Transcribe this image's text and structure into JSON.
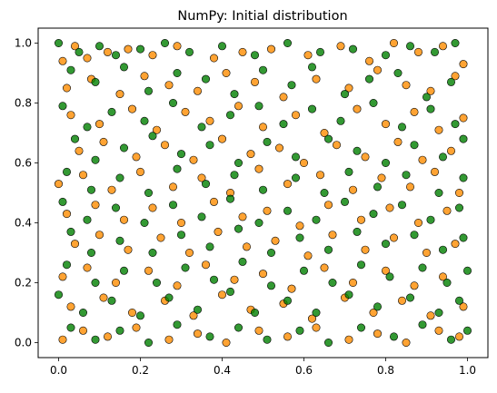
{
  "chart_data": {
    "type": "scatter",
    "title": "NumPy: Initial distribution",
    "xlabel": "",
    "ylabel": "",
    "xlim": [
      -0.05,
      1.05
    ],
    "ylim": [
      -0.05,
      1.05
    ],
    "xticks": [
      0.0,
      0.2,
      0.4,
      0.6,
      0.8,
      1.0
    ],
    "yticks": [
      0.0,
      0.2,
      0.4,
      0.6,
      0.8,
      1.0
    ],
    "xtick_labels": [
      "0.0",
      "0.2",
      "0.4",
      "0.6",
      "0.8",
      "1.0"
    ],
    "ytick_labels": [
      "0.0",
      "0.2",
      "0.4",
      "0.6",
      "0.8",
      "1.0"
    ],
    "grid": false,
    "legend": "none",
    "series": [
      {
        "color": "#ff8c00",
        "edgecolor": "#000000",
        "alpha": 0.8,
        "points": [
          [
            0.01,
            0.94
          ],
          [
            0.04,
            0.99
          ],
          [
            0.07,
            0.95
          ],
          [
            0.12,
            0.97
          ],
          [
            0.17,
            0.98
          ],
          [
            0.23,
            0.96
          ],
          [
            0.29,
            0.99
          ],
          [
            0.38,
            0.95
          ],
          [
            0.45,
            0.97
          ],
          [
            0.52,
            0.98
          ],
          [
            0.61,
            0.96
          ],
          [
            0.69,
            0.99
          ],
          [
            0.76,
            0.94
          ],
          [
            0.82,
            1.0
          ],
          [
            0.88,
            0.97
          ],
          [
            0.94,
            0.99
          ],
          [
            0.99,
            0.93
          ],
          [
            0.02,
            0.85
          ],
          [
            0.08,
            0.88
          ],
          [
            0.15,
            0.83
          ],
          [
            0.21,
            0.89
          ],
          [
            0.27,
            0.86
          ],
          [
            0.34,
            0.84
          ],
          [
            0.41,
            0.9
          ],
          [
            0.48,
            0.87
          ],
          [
            0.55,
            0.82
          ],
          [
            0.63,
            0.88
          ],
          [
            0.71,
            0.85
          ],
          [
            0.78,
            0.91
          ],
          [
            0.85,
            0.86
          ],
          [
            0.91,
            0.84
          ],
          [
            0.97,
            0.89
          ],
          [
            0.03,
            0.76
          ],
          [
            0.1,
            0.73
          ],
          [
            0.18,
            0.78
          ],
          [
            0.24,
            0.71
          ],
          [
            0.31,
            0.77
          ],
          [
            0.37,
            0.74
          ],
          [
            0.44,
            0.79
          ],
          [
            0.5,
            0.72
          ],
          [
            0.58,
            0.76
          ],
          [
            0.65,
            0.7
          ],
          [
            0.73,
            0.78
          ],
          [
            0.8,
            0.73
          ],
          [
            0.87,
            0.77
          ],
          [
            0.93,
            0.71
          ],
          [
            0.99,
            0.75
          ],
          [
            0.05,
            0.64
          ],
          [
            0.11,
            0.67
          ],
          [
            0.19,
            0.62
          ],
          [
            0.26,
            0.66
          ],
          [
            0.33,
            0.61
          ],
          [
            0.4,
            0.68
          ],
          [
            0.47,
            0.63
          ],
          [
            0.54,
            0.65
          ],
          [
            0.6,
            0.6
          ],
          [
            0.68,
            0.66
          ],
          [
            0.75,
            0.62
          ],
          [
            0.83,
            0.67
          ],
          [
            0.89,
            0.61
          ],
          [
            0.96,
            0.64
          ],
          [
            0.0,
            0.53
          ],
          [
            0.06,
            0.56
          ],
          [
            0.13,
            0.51
          ],
          [
            0.2,
            0.57
          ],
          [
            0.28,
            0.52
          ],
          [
            0.35,
            0.55
          ],
          [
            0.42,
            0.5
          ],
          [
            0.49,
            0.58
          ],
          [
            0.56,
            0.53
          ],
          [
            0.64,
            0.56
          ],
          [
            0.72,
            0.51
          ],
          [
            0.79,
            0.55
          ],
          [
            0.86,
            0.52
          ],
          [
            0.92,
            0.57
          ],
          [
            0.98,
            0.5
          ],
          [
            0.02,
            0.43
          ],
          [
            0.09,
            0.46
          ],
          [
            0.16,
            0.41
          ],
          [
            0.23,
            0.45
          ],
          [
            0.3,
            0.4
          ],
          [
            0.38,
            0.47
          ],
          [
            0.45,
            0.42
          ],
          [
            0.51,
            0.44
          ],
          [
            0.59,
            0.39
          ],
          [
            0.66,
            0.46
          ],
          [
            0.74,
            0.41
          ],
          [
            0.81,
            0.45
          ],
          [
            0.88,
            0.4
          ],
          [
            0.95,
            0.44
          ],
          [
            0.04,
            0.33
          ],
          [
            0.1,
            0.36
          ],
          [
            0.17,
            0.31
          ],
          [
            0.25,
            0.35
          ],
          [
            0.32,
            0.3
          ],
          [
            0.39,
            0.37
          ],
          [
            0.46,
            0.32
          ],
          [
            0.53,
            0.34
          ],
          [
            0.61,
            0.29
          ],
          [
            0.67,
            0.36
          ],
          [
            0.75,
            0.31
          ],
          [
            0.82,
            0.35
          ],
          [
            0.9,
            0.3
          ],
          [
            0.97,
            0.33
          ],
          [
            0.01,
            0.22
          ],
          [
            0.07,
            0.25
          ],
          [
            0.14,
            0.2
          ],
          [
            0.22,
            0.24
          ],
          [
            0.29,
            0.19
          ],
          [
            0.36,
            0.26
          ],
          [
            0.43,
            0.21
          ],
          [
            0.5,
            0.23
          ],
          [
            0.57,
            0.18
          ],
          [
            0.65,
            0.25
          ],
          [
            0.72,
            0.2
          ],
          [
            0.8,
            0.24
          ],
          [
            0.87,
            0.19
          ],
          [
            0.94,
            0.22
          ],
          [
            0.03,
            0.12
          ],
          [
            0.11,
            0.15
          ],
          [
            0.18,
            0.1
          ],
          [
            0.26,
            0.14
          ],
          [
            0.33,
            0.09
          ],
          [
            0.4,
            0.16
          ],
          [
            0.47,
            0.11
          ],
          [
            0.55,
            0.13
          ],
          [
            0.62,
            0.08
          ],
          [
            0.7,
            0.15
          ],
          [
            0.77,
            0.1
          ],
          [
            0.84,
            0.14
          ],
          [
            0.91,
            0.09
          ],
          [
            0.99,
            0.12
          ],
          [
            0.01,
            0.01
          ],
          [
            0.06,
            0.04
          ],
          [
            0.12,
            0.02
          ],
          [
            0.19,
            0.05
          ],
          [
            0.27,
            0.01
          ],
          [
            0.34,
            0.03
          ],
          [
            0.41,
            0.0
          ],
          [
            0.49,
            0.04
          ],
          [
            0.56,
            0.02
          ],
          [
            0.63,
            0.05
          ],
          [
            0.71,
            0.01
          ],
          [
            0.78,
            0.03
          ],
          [
            0.85,
            0.0
          ],
          [
            0.93,
            0.04
          ],
          [
            0.98,
            0.02
          ]
        ]
      },
      {
        "color": "#008000",
        "edgecolor": "#000000",
        "alpha": 0.8,
        "points": [
          [
            0.0,
            1.0
          ],
          [
            0.05,
            0.97
          ],
          [
            0.1,
            0.99
          ],
          [
            0.14,
            0.96
          ],
          [
            0.2,
            0.98
          ],
          [
            0.26,
            1.0
          ],
          [
            0.32,
            0.97
          ],
          [
            0.4,
            0.99
          ],
          [
            0.48,
            0.96
          ],
          [
            0.56,
            1.0
          ],
          [
            0.64,
            0.97
          ],
          [
            0.72,
            0.98
          ],
          [
            0.8,
            0.96
          ],
          [
            0.86,
            0.99
          ],
          [
            0.92,
            0.97
          ],
          [
            0.97,
            1.0
          ],
          [
            0.03,
            0.91
          ],
          [
            0.09,
            0.87
          ],
          [
            0.16,
            0.92
          ],
          [
            0.22,
            0.84
          ],
          [
            0.29,
            0.9
          ],
          [
            0.36,
            0.88
          ],
          [
            0.43,
            0.83
          ],
          [
            0.5,
            0.91
          ],
          [
            0.57,
            0.86
          ],
          [
            0.62,
            0.92
          ],
          [
            0.7,
            0.83
          ],
          [
            0.76,
            0.88
          ],
          [
            0.83,
            0.9
          ],
          [
            0.9,
            0.82
          ],
          [
            0.96,
            0.87
          ],
          [
            0.01,
            0.79
          ],
          [
            0.07,
            0.72
          ],
          [
            0.13,
            0.77
          ],
          [
            0.21,
            0.74
          ],
          [
            0.28,
            0.8
          ],
          [
            0.35,
            0.72
          ],
          [
            0.42,
            0.76
          ],
          [
            0.49,
            0.79
          ],
          [
            0.55,
            0.73
          ],
          [
            0.62,
            0.78
          ],
          [
            0.69,
            0.74
          ],
          [
            0.77,
            0.8
          ],
          [
            0.84,
            0.72
          ],
          [
            0.91,
            0.78
          ],
          [
            0.97,
            0.73
          ],
          [
            0.04,
            0.68
          ],
          [
            0.09,
            0.61
          ],
          [
            0.16,
            0.65
          ],
          [
            0.23,
            0.69
          ],
          [
            0.3,
            0.63
          ],
          [
            0.37,
            0.66
          ],
          [
            0.44,
            0.6
          ],
          [
            0.51,
            0.67
          ],
          [
            0.58,
            0.62
          ],
          [
            0.66,
            0.68
          ],
          [
            0.73,
            0.64
          ],
          [
            0.8,
            0.6
          ],
          [
            0.87,
            0.66
          ],
          [
            0.94,
            0.62
          ],
          [
            0.99,
            0.68
          ],
          [
            0.02,
            0.57
          ],
          [
            0.08,
            0.51
          ],
          [
            0.15,
            0.55
          ],
          [
            0.22,
            0.5
          ],
          [
            0.29,
            0.58
          ],
          [
            0.36,
            0.53
          ],
          [
            0.43,
            0.56
          ],
          [
            0.5,
            0.51
          ],
          [
            0.58,
            0.55
          ],
          [
            0.65,
            0.5
          ],
          [
            0.71,
            0.57
          ],
          [
            0.78,
            0.52
          ],
          [
            0.85,
            0.56
          ],
          [
            0.93,
            0.5
          ],
          [
            0.99,
            0.55
          ],
          [
            0.01,
            0.47
          ],
          [
            0.07,
            0.41
          ],
          [
            0.14,
            0.45
          ],
          [
            0.21,
            0.4
          ],
          [
            0.28,
            0.46
          ],
          [
            0.35,
            0.42
          ],
          [
            0.42,
            0.48
          ],
          [
            0.49,
            0.4
          ],
          [
            0.56,
            0.44
          ],
          [
            0.63,
            0.41
          ],
          [
            0.7,
            0.47
          ],
          [
            0.77,
            0.43
          ],
          [
            0.84,
            0.46
          ],
          [
            0.91,
            0.41
          ],
          [
            0.98,
            0.45
          ],
          [
            0.03,
            0.37
          ],
          [
            0.08,
            0.3
          ],
          [
            0.15,
            0.34
          ],
          [
            0.23,
            0.3
          ],
          [
            0.3,
            0.36
          ],
          [
            0.37,
            0.32
          ],
          [
            0.44,
            0.38
          ],
          [
            0.52,
            0.3
          ],
          [
            0.59,
            0.35
          ],
          [
            0.66,
            0.31
          ],
          [
            0.73,
            0.37
          ],
          [
            0.8,
            0.33
          ],
          [
            0.87,
            0.36
          ],
          [
            0.94,
            0.31
          ],
          [
            0.99,
            0.35
          ],
          [
            0.02,
            0.26
          ],
          [
            0.09,
            0.2
          ],
          [
            0.16,
            0.24
          ],
          [
            0.24,
            0.2
          ],
          [
            0.31,
            0.25
          ],
          [
            0.38,
            0.21
          ],
          [
            0.45,
            0.27
          ],
          [
            0.52,
            0.19
          ],
          [
            0.6,
            0.24
          ],
          [
            0.67,
            0.2
          ],
          [
            0.74,
            0.26
          ],
          [
            0.81,
            0.22
          ],
          [
            0.89,
            0.25
          ],
          [
            0.95,
            0.2
          ],
          [
            1.0,
            0.24
          ],
          [
            0.0,
            0.16
          ],
          [
            0.06,
            0.1
          ],
          [
            0.13,
            0.14
          ],
          [
            0.2,
            0.09
          ],
          [
            0.27,
            0.15
          ],
          [
            0.34,
            0.11
          ],
          [
            0.42,
            0.17
          ],
          [
            0.48,
            0.1
          ],
          [
            0.56,
            0.14
          ],
          [
            0.63,
            0.1
          ],
          [
            0.71,
            0.16
          ],
          [
            0.78,
            0.12
          ],
          [
            0.86,
            0.15
          ],
          [
            0.93,
            0.1
          ],
          [
            0.98,
            0.14
          ],
          [
            0.03,
            0.05
          ],
          [
            0.09,
            0.01
          ],
          [
            0.15,
            0.04
          ],
          [
            0.22,
            0.0
          ],
          [
            0.29,
            0.06
          ],
          [
            0.37,
            0.02
          ],
          [
            0.44,
            0.05
          ],
          [
            0.51,
            0.01
          ],
          [
            0.59,
            0.04
          ],
          [
            0.66,
            0.0
          ],
          [
            0.74,
            0.05
          ],
          [
            0.82,
            0.02
          ],
          [
            0.89,
            0.06
          ],
          [
            0.96,
            0.01
          ],
          [
            1.0,
            0.04
          ]
        ]
      }
    ]
  }
}
